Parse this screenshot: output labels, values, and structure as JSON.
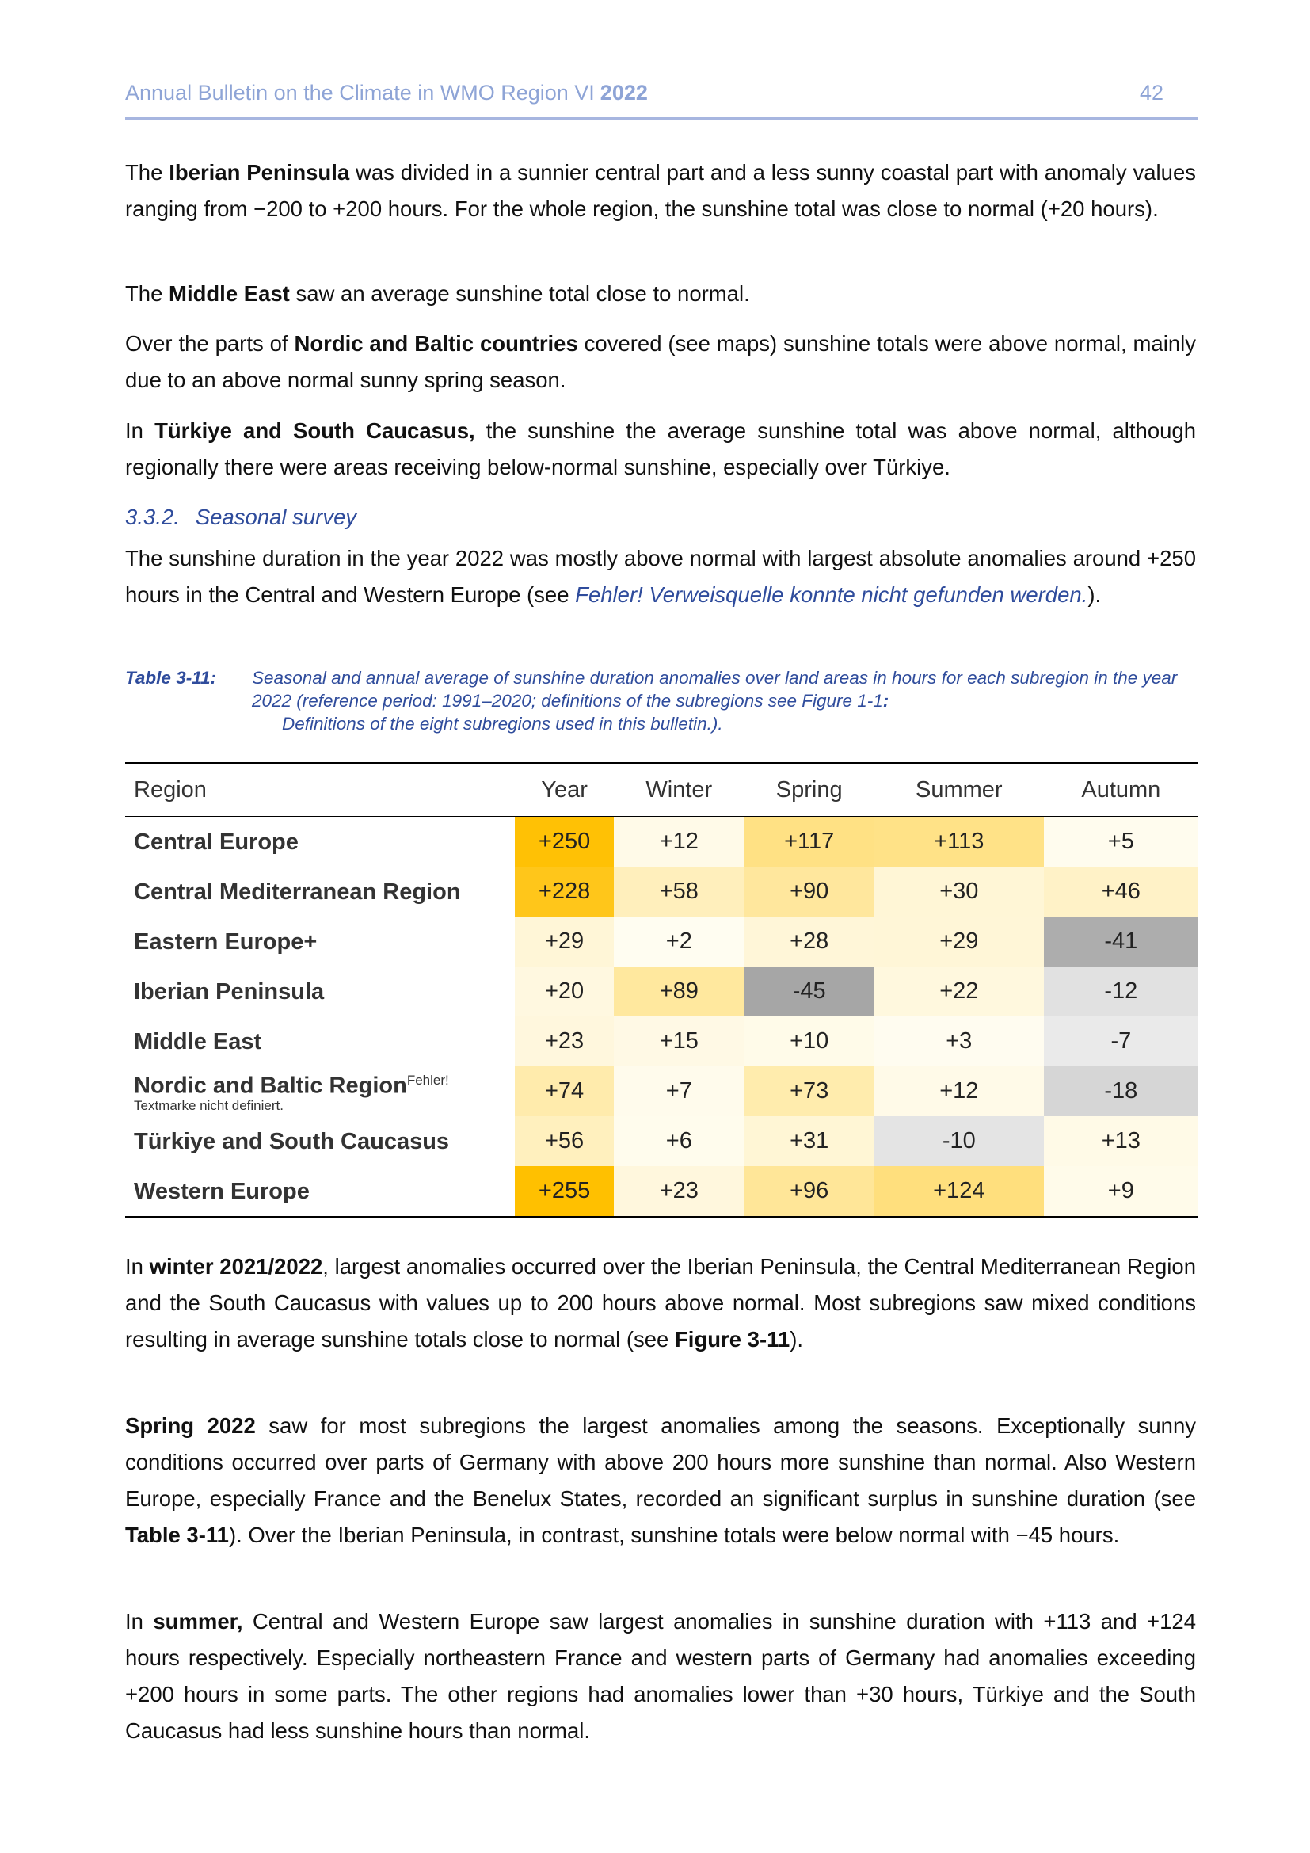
{
  "header": {
    "title": "Annual Bulletin on the Climate in WMO Region VI",
    "year": "2022",
    "page": "42"
  },
  "paragraphs": [
    [
      {
        "text": "The "
      },
      {
        "text": "Iberian Peninsula",
        "style": "bold"
      },
      {
        "text": " was divided in a sunnier central part and a less sunny coastal part with anomaly values ranging from −200 to +200 hours. For the whole region, the sunshine total was close to normal (+20 hours)."
      }
    ],
    [
      {
        "text": "The "
      },
      {
        "text": "Middle East",
        "style": "bold"
      },
      {
        "text": " saw an average sunshine total close to normal."
      }
    ],
    [
      {
        "text": "Over the parts of "
      },
      {
        "text": "Nordic and Baltic countries",
        "style": "bold"
      },
      {
        "text": " covered (see maps) sunshine totals were above normal, mainly due to an above normal sunny spring season."
      }
    ],
    [
      {
        "text": "In "
      },
      {
        "text": "Türkiye and South Caucasus,",
        "style": "bold"
      },
      {
        "text": " the sunshine the average sunshine total was above normal, although regionally there were areas receiving below-normal sunshine, especially over Türkiye."
      }
    ],
    [
      {
        "text": "The sunshine duration in the year 2022 was mostly above normal with largest absolute anomalies around +250 hours in the Central and Western Europe (see "
      },
      {
        "text": "Fehler! Verweisquelle konnte nicht gefunden werden.",
        "style": "link"
      },
      {
        "text": ")."
      }
    ],
    [
      {
        "text": "In "
      },
      {
        "text": "winter 2021/2022",
        "style": "bold"
      },
      {
        "text": ", largest anomalies occurred over the Iberian Peninsula, the Central Mediterranean Region and the South Caucasus with values up to 200 hours above normal. Most subregions saw mixed conditions resulting in average sunshine totals close to normal (see "
      },
      {
        "text": "Figure 3-11",
        "style": "bold"
      },
      {
        "text": ")."
      }
    ],
    [
      {
        "text": "Spring 2022",
        "style": "bold"
      },
      {
        "text": " saw for most subregions the largest anomalies among the seasons. Exceptionally sunny conditions occurred over parts of Germany with above 200 hours more sunshine than normal. Also Western Europe, especially France and the Benelux States, recorded an significant surplus in sunshine duration (see "
      },
      {
        "text": "Table 3-11",
        "style": "bold"
      },
      {
        "text": "). Over the Iberian Peninsula, in contrast, sunshine totals were below normal with −45 hours."
      }
    ],
    [
      {
        "text": "In "
      },
      {
        "text": "summer,",
        "style": "bold"
      },
      {
        "text": " Central and Western Europe saw largest anomalies in sunshine duration with +113 and +124 hours respectively. Especially northeastern France and western parts of Germany had anomalies exceeding +200 hours in some parts. The other regions had anomalies lower than +30 hours, Türkiye and the South Caucasus had less sunshine hours than normal."
      }
    ]
  ],
  "section": {
    "number": "3.3.2.",
    "title": "Seasonal survey"
  },
  "caption": {
    "label": "Table 3-11:",
    "runs": [
      {
        "text": "Seasonal and annual average of sunshine duration anomalies over land areas in hours for each subregion in the year 2022 (reference period: 1991–2020; definitions of the subregions see Figure 1-1"
      },
      {
        "text": ":",
        "style": "bold"
      },
      {
        "text": "Definitions of the eight subregions used in this bulletin.).",
        "style": "indent"
      }
    ]
  },
  "table": {
    "header": [
      "Region",
      "Year",
      "Winter",
      "Spring",
      "Summer",
      "Autumn"
    ],
    "rows": [
      [
        "Central Europe",
        "+250",
        "+12",
        "+117",
        "+113",
        "+5"
      ],
      [
        "Central Mediterranean Region",
        "+228",
        "+58",
        "+90",
        "+30",
        "+46"
      ],
      [
        "Eastern Europe+",
        "+29",
        "+2",
        "+28",
        "+29",
        "-41"
      ],
      [
        "Iberian Peninsula",
        "+20",
        "+89",
        "-45",
        "+22",
        "-12"
      ],
      [
        "Middle East",
        "+23",
        "+15",
        "+10",
        "+3",
        "-7"
      ],
      [
        [
          {
            "text": "Nordic and Baltic Region"
          },
          {
            "text": "Fehler!",
            "style": "sup"
          },
          {
            "text": "Textmarke nicht definiert.",
            "style": "small"
          }
        ],
        "+74",
        "+7",
        "+73",
        "+12",
        "-18"
      ],
      [
        "Türkiye and South Caucasus",
        "+56",
        "+6",
        "+31",
        "-10",
        "+13"
      ],
      [
        "Western Europe",
        "+255",
        "+23",
        "+96",
        "+124",
        "+9"
      ]
    ]
  }
}
